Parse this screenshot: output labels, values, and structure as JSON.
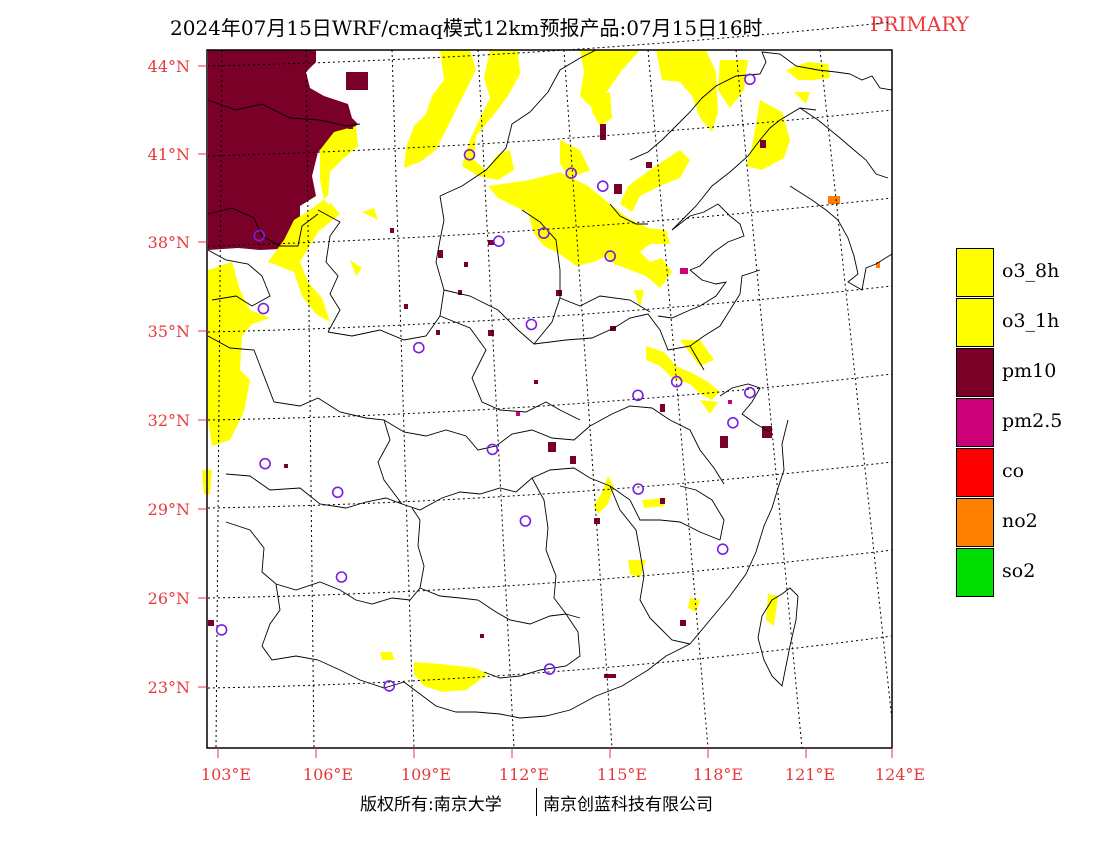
{
  "title": {
    "main": "2024年07月15日WRF/cmaq模式12km预报产品:07月15日16时",
    "tag": "PRIMARY"
  },
  "map": {
    "lat_labels": [
      "44°N",
      "41°N",
      "38°N",
      "35°N",
      "32°N",
      "29°N",
      "26°N",
      "23°N"
    ],
    "lon_labels": [
      "103°E",
      "106°E",
      "109°E",
      "112°E",
      "115°E",
      "118°E",
      "121°E",
      "124°E"
    ],
    "lat_range": [
      20.7,
      44.5
    ],
    "lon_range": [
      102.6,
      124.0
    ],
    "stations": [
      [
        119.0,
        42.9
      ],
      [
        110.3,
        40.8
      ],
      [
        113.5,
        40.0
      ],
      [
        114.5,
        39.5
      ],
      [
        103.8,
        38.4
      ],
      [
        111.3,
        37.8
      ],
      [
        112.7,
        38.0
      ],
      [
        114.8,
        37.1
      ],
      [
        104.0,
        35.9
      ],
      [
        108.9,
        34.3
      ],
      [
        112.4,
        34.9
      ],
      [
        117.0,
        32.7
      ],
      [
        115.8,
        32.3
      ],
      [
        119.3,
        32.2
      ],
      [
        111.3,
        30.7
      ],
      [
        104.2,
        30.6
      ],
      [
        106.5,
        29.5
      ],
      [
        115.9,
        29.1
      ],
      [
        118.8,
        31.2
      ],
      [
        112.4,
        28.2
      ],
      [
        106.7,
        26.6
      ],
      [
        118.6,
        26.9
      ],
      [
        103.0,
        25.0
      ],
      [
        108.3,
        22.8
      ],
      [
        113.3,
        23.1
      ]
    ]
  },
  "legend": [
    {
      "label": "o3_8h",
      "color": "#ffff00"
    },
    {
      "label": "o3_1h",
      "color": "#ffff00"
    },
    {
      "label": "pm10",
      "color": "#7a0028"
    },
    {
      "label": "pm2.5",
      "color": "#cc0077"
    },
    {
      "label": "co",
      "color": "#ff0000"
    },
    {
      "label": "no2",
      "color": "#ff7f00"
    },
    {
      "label": "so2",
      "color": "#00dd00"
    }
  ],
  "footer": {
    "left": "版权所有:南京大学",
    "right": "南京创蓝科技有限公司"
  }
}
